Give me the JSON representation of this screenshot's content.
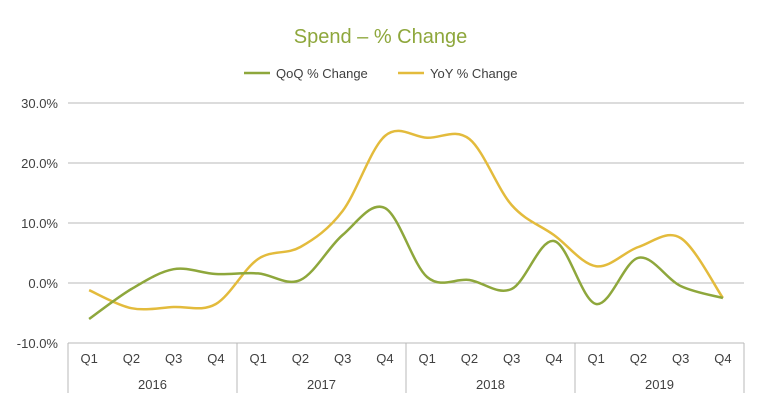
{
  "chart_data": {
    "type": "line",
    "title": "Spend – % Change",
    "xlabel": "",
    "ylabel": "",
    "categories": [
      "Q1",
      "Q2",
      "Q3",
      "Q4",
      "Q1",
      "Q2",
      "Q3",
      "Q4",
      "Q1",
      "Q2",
      "Q3",
      "Q4",
      "Q1",
      "Q2",
      "Q3",
      "Q4"
    ],
    "groups": [
      {
        "label": "2016",
        "span": 4
      },
      {
        "label": "2017",
        "span": 4
      },
      {
        "label": "2018",
        "span": 4
      },
      {
        "label": "2019",
        "span": 4
      }
    ],
    "series": [
      {
        "name": "QoQ % Change",
        "color": "#8ea73c",
        "values": [
          -6.0,
          -1.0,
          2.3,
          1.5,
          1.6,
          0.5,
          8.0,
          12.5,
          1.0,
          0.5,
          -1.0,
          7.0,
          -3.5,
          4.2,
          -0.5,
          -2.5
        ]
      },
      {
        "name": "YoY % Change",
        "color": "#e3bb3c",
        "values": [
          -1.2,
          -4.2,
          -4.0,
          -3.5,
          4.0,
          6.0,
          12.0,
          24.5,
          24.2,
          24.0,
          13.0,
          8.0,
          2.8,
          6.0,
          7.5,
          -2.5
        ]
      }
    ],
    "ylim": [
      -10,
      30
    ],
    "yticks": [
      -10,
      0,
      10,
      20,
      30
    ],
    "ytick_labels": [
      "-10.0%",
      "0.0%",
      "10.0%",
      "20.0%",
      "30.0%"
    ],
    "grid": true,
    "legend": "top-center"
  }
}
